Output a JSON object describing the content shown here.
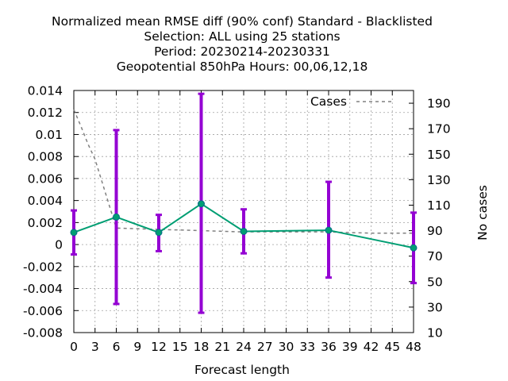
{
  "chart_data": {
    "type": "line",
    "title_lines": [
      "Normalized mean RMSE diff (90% conf) Standard - Blacklisted",
      "Selection: ALL using    25 stations",
      "Period: 20230214-20230331",
      "Geopotential 850hPa   Hours:  00,06,12,18"
    ],
    "xlabel": "Forecast length",
    "ylabel": "",
    "y2label": "No cases",
    "xlim": [
      0,
      48
    ],
    "ylim": [
      -0.008,
      0.014
    ],
    "y2lim": [
      10,
      200
    ],
    "x_ticks": [
      0,
      3,
      6,
      9,
      12,
      15,
      18,
      21,
      24,
      27,
      30,
      33,
      36,
      39,
      42,
      45,
      48
    ],
    "y_ticks": [
      "-0.008",
      "-0.006",
      "-0.004",
      "-0.002",
      "0",
      "0.002",
      "0.004",
      "0.006",
      "0.008",
      "0.01",
      "0.012",
      "0.014"
    ],
    "y2_ticks": [
      10,
      30,
      50,
      70,
      90,
      110,
      130,
      150,
      170,
      190
    ],
    "grid": true,
    "legend": {
      "position": "top-right",
      "entries": [
        "Cases"
      ]
    },
    "series": [
      {
        "kind": "mean-with-error",
        "x": [
          0,
          6,
          12,
          18,
          24,
          36,
          48
        ],
        "values": [
          0.0011,
          0.0025,
          0.0011,
          0.0037,
          0.0012,
          0.0013,
          -0.0003
        ],
        "lower": [
          -0.0009,
          -0.0054,
          -0.0006,
          -0.0062,
          -0.0008,
          -0.003,
          -0.0035
        ],
        "upper": [
          0.0031,
          0.0104,
          0.0027,
          0.0137,
          0.0032,
          0.0057,
          0.0029
        ],
        "color": "#009e73",
        "error_color": "#9400d3"
      },
      {
        "name": "Cases",
        "axis": "y2",
        "x": [
          0,
          1,
          2,
          3,
          4,
          5,
          6,
          12,
          18,
          24,
          30,
          36,
          42,
          48
        ],
        "values": [
          185,
          172,
          158,
          146,
          128,
          110,
          92,
          91,
          90,
          89,
          89,
          89,
          88,
          88
        ],
        "color": "#808080",
        "dash": true
      }
    ]
  }
}
